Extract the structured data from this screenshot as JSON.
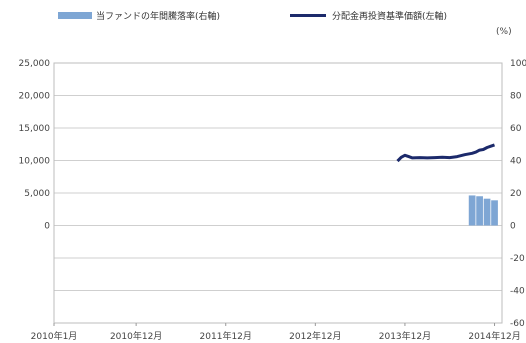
{
  "chart_data": {
    "type": "bar+line",
    "legend": {
      "placement": "top",
      "bar_label": "当ファンドの年間騰落率(右軸)",
      "line_label": "分配金再投資基準価額(左軸)"
    },
    "colors": {
      "bar": "#7ea6d4",
      "line": "#1c2a6b",
      "grid": "#cfcfcf"
    },
    "left_axis": {
      "ylim": [
        -15000,
        25000
      ],
      "tick_labels": [
        "25,000",
        "20,000",
        "15,000",
        "10,000",
        "5,000",
        "0"
      ],
      "tick_values": [
        25000,
        20000,
        15000,
        10000,
        5000,
        0
      ]
    },
    "right_axis": {
      "unit_label": "(%)",
      "ylim": [
        -60,
        100
      ],
      "tick_labels": [
        "100",
        "80",
        "60",
        "40",
        "20",
        "0",
        "-20",
        "-40",
        "-60"
      ],
      "tick_values": [
        100,
        80,
        60,
        40,
        20,
        0,
        -20,
        -40,
        -60
      ]
    },
    "x_axis": {
      "tick_labels": [
        "2010年1月",
        "2010年12月",
        "2011年12月",
        "2012年12月",
        "2013年12月",
        "2014年12月"
      ],
      "tick_months": [
        0,
        11,
        23,
        35,
        47,
        59
      ]
    },
    "bars": [
      {
        "month": 56,
        "value": 18.5
      },
      {
        "month": 57,
        "value": 18
      },
      {
        "month": 58,
        "value": 16.5
      },
      {
        "month": 59,
        "value": 15.5
      }
    ],
    "line": {
      "month": [
        46,
        46.5,
        47,
        47.5,
        48,
        49,
        50,
        51,
        52,
        53,
        54,
        55,
        56,
        56.5,
        57,
        57.5,
        58,
        58.5,
        59
      ],
      "value": [
        9900,
        10500,
        10800,
        10600,
        10400,
        10450,
        10400,
        10450,
        10500,
        10450,
        10600,
        10900,
        11100,
        11300,
        11600,
        11700,
        12000,
        12200,
        12400
      ]
    }
  }
}
